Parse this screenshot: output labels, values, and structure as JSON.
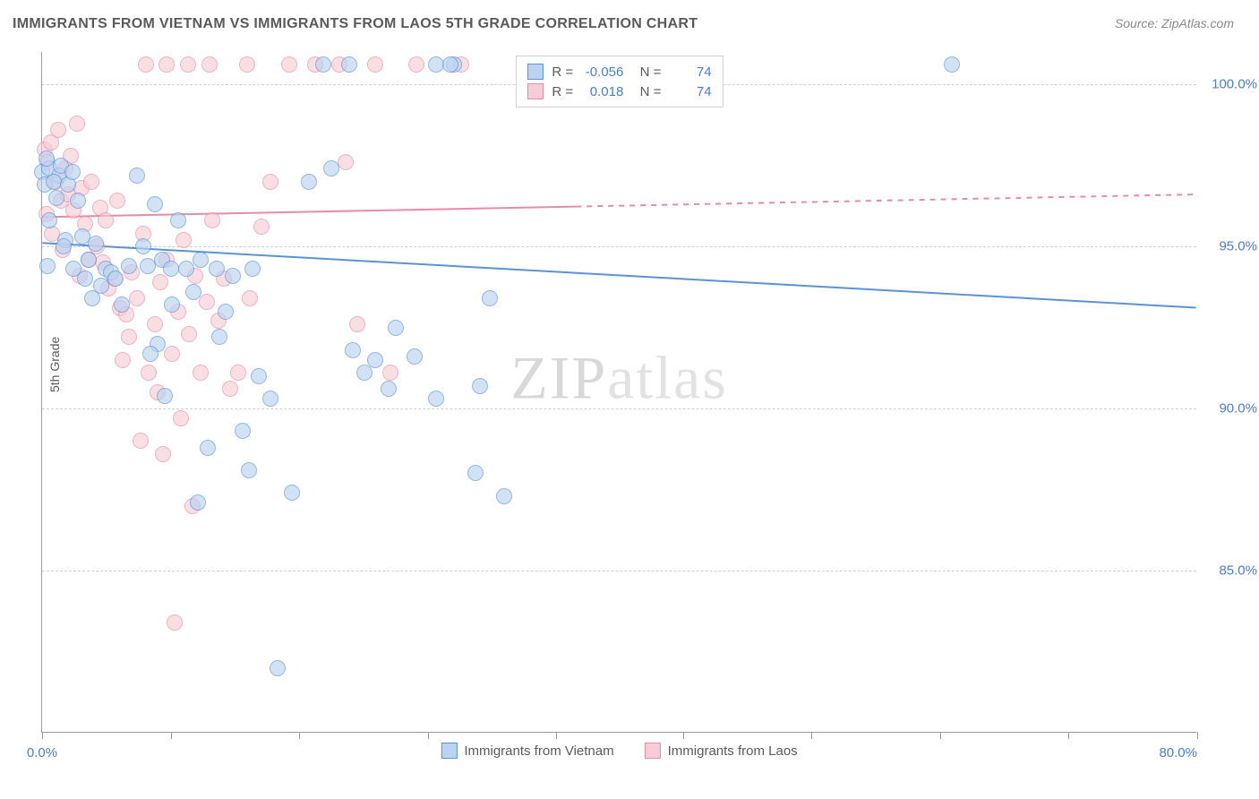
{
  "title": "IMMIGRANTS FROM VIETNAM VS IMMIGRANTS FROM LAOS 5TH GRADE CORRELATION CHART",
  "source_label": "Source: ZipAtlas.com",
  "watermark": {
    "part1": "ZIP",
    "part2": "atlas"
  },
  "y_axis_label": "5th Grade",
  "chart": {
    "background_color": "#ffffff",
    "grid_color": "#d0d0d0",
    "axis_color": "#9a9a9a",
    "tick_label_color": "#4a7ec9",
    "xlim": [
      0,
      80
    ],
    "ylim": [
      80,
      101
    ],
    "x_ticks_major": [
      0,
      80
    ],
    "x_ticks_minor": [
      0,
      8.9,
      17.8,
      26.7,
      35.6,
      44.4,
      53.3,
      62.2,
      71.1,
      80
    ],
    "x_tick_labels": {
      "0": "0.0%",
      "80": "80.0%"
    },
    "y_ticks": [
      85,
      90,
      95,
      100
    ],
    "y_tick_labels": {
      "85": "85.0%",
      "90": "90.0%",
      "95": "95.0%",
      "100": "100.0%"
    },
    "marker_radius": 9,
    "marker_stroke_width": 1.2,
    "trend_line_width": 2
  },
  "series": {
    "vietnam": {
      "label": "Immigrants from Vietnam",
      "fill": "#b9d3f0",
      "stroke": "#5a93d6",
      "fill_opacity": 0.65,
      "R": "-0.056",
      "N": "74",
      "trend": {
        "y_at_x0": 95.1,
        "y_at_x80": 93.1,
        "solid_until_x": 80
      },
      "points": [
        [
          0,
          97.3
        ],
        [
          0.5,
          97.4
        ],
        [
          0.3,
          97.7
        ],
        [
          1.2,
          97.2
        ],
        [
          0.2,
          96.9
        ],
        [
          0.8,
          97.0
        ],
        [
          1.3,
          97.5
        ],
        [
          1.0,
          96.5
        ],
        [
          1.8,
          96.9
        ],
        [
          0.5,
          95.8
        ],
        [
          2.1,
          97.3
        ],
        [
          1.6,
          95.2
        ],
        [
          2.5,
          96.4
        ],
        [
          1.5,
          95.0
        ],
        [
          2.8,
          95.3
        ],
        [
          0.4,
          94.4
        ],
        [
          3.2,
          94.6
        ],
        [
          2.2,
          94.3
        ],
        [
          3.7,
          95.1
        ],
        [
          3.0,
          94.0
        ],
        [
          4.4,
          94.3
        ],
        [
          4.1,
          93.8
        ],
        [
          4.8,
          94.2
        ],
        [
          3.5,
          93.4
        ],
        [
          5.1,
          94.0
        ],
        [
          5.5,
          93.2
        ],
        [
          6.0,
          94.4
        ],
        [
          6.6,
          97.2
        ],
        [
          7.0,
          95.0
        ],
        [
          7.3,
          94.4
        ],
        [
          7.8,
          96.3
        ],
        [
          8.3,
          94.6
        ],
        [
          8.9,
          94.3
        ],
        [
          9.4,
          95.8
        ],
        [
          10.0,
          94.3
        ],
        [
          10.5,
          93.6
        ],
        [
          12.1,
          94.3
        ],
        [
          12.7,
          93.0
        ],
        [
          13.2,
          94.1
        ],
        [
          14.6,
          94.3
        ],
        [
          15.0,
          91.0
        ],
        [
          15.8,
          90.3
        ],
        [
          13.9,
          89.3
        ],
        [
          14.3,
          88.1
        ],
        [
          17.3,
          87.4
        ],
        [
          16.3,
          82.0
        ],
        [
          10.8,
          87.1
        ],
        [
          12.3,
          92.2
        ],
        [
          11.0,
          94.6
        ],
        [
          8.0,
          92.0
        ],
        [
          9.0,
          93.2
        ],
        [
          7.5,
          91.7
        ],
        [
          8.5,
          90.4
        ],
        [
          11.5,
          88.8
        ],
        [
          18.5,
          97.0
        ],
        [
          20.0,
          97.4
        ],
        [
          19.5,
          100.6
        ],
        [
          21.3,
          100.6
        ],
        [
          21.5,
          91.8
        ],
        [
          22.3,
          91.1
        ],
        [
          23.1,
          91.5
        ],
        [
          24.0,
          90.6
        ],
        [
          24.5,
          92.5
        ],
        [
          25.8,
          91.6
        ],
        [
          27.3,
          90.3
        ],
        [
          28.5,
          100.6
        ],
        [
          30.0,
          88.0
        ],
        [
          30.3,
          90.7
        ],
        [
          31.0,
          93.4
        ],
        [
          32.0,
          87.3
        ],
        [
          27.3,
          100.6
        ],
        [
          28.3,
          100.6
        ],
        [
          35.5,
          100.6
        ],
        [
          63.0,
          100.6
        ]
      ]
    },
    "laos": {
      "label": "Immigrants from Laos",
      "fill": "#f6cdd7",
      "stroke": "#e98ba4",
      "fill_opacity": 0.65,
      "R": "0.018",
      "N": "74",
      "trend": {
        "y_at_x0": 95.9,
        "y_at_x80": 96.6,
        "solid_until_x": 37
      },
      "points": [
        [
          0.2,
          98.0
        ],
        [
          0.4,
          97.6
        ],
        [
          0.6,
          98.2
        ],
        [
          0.9,
          97.0
        ],
        [
          1.1,
          98.6
        ],
        [
          1.3,
          96.4
        ],
        [
          1.6,
          97.4
        ],
        [
          0.3,
          96.0
        ],
        [
          1.8,
          96.6
        ],
        [
          2.0,
          97.8
        ],
        [
          2.2,
          96.1
        ],
        [
          2.4,
          98.8
        ],
        [
          0.7,
          95.4
        ],
        [
          2.7,
          96.8
        ],
        [
          1.4,
          94.9
        ],
        [
          3.0,
          95.7
        ],
        [
          3.4,
          97.0
        ],
        [
          3.2,
          94.6
        ],
        [
          3.8,
          95.0
        ],
        [
          2.6,
          94.1
        ],
        [
          4.2,
          94.5
        ],
        [
          4.0,
          96.2
        ],
        [
          4.6,
          93.7
        ],
        [
          4.4,
          95.8
        ],
        [
          5.0,
          94.0
        ],
        [
          5.4,
          93.1
        ],
        [
          5.2,
          96.4
        ],
        [
          5.8,
          92.9
        ],
        [
          6.2,
          94.2
        ],
        [
          5.6,
          91.5
        ],
        [
          6.6,
          93.4
        ],
        [
          6.0,
          92.2
        ],
        [
          7.0,
          95.4
        ],
        [
          7.4,
          91.1
        ],
        [
          6.8,
          89.0
        ],
        [
          7.8,
          92.6
        ],
        [
          8.2,
          93.9
        ],
        [
          8.0,
          90.5
        ],
        [
          8.6,
          94.6
        ],
        [
          9.0,
          91.7
        ],
        [
          8.4,
          88.6
        ],
        [
          9.4,
          93.0
        ],
        [
          9.8,
          95.2
        ],
        [
          10.2,
          92.3
        ],
        [
          9.6,
          89.7
        ],
        [
          10.6,
          94.1
        ],
        [
          11.0,
          91.1
        ],
        [
          10.4,
          87.0
        ],
        [
          11.4,
          93.3
        ],
        [
          11.8,
          95.8
        ],
        [
          12.2,
          92.7
        ],
        [
          9.2,
          83.4
        ],
        [
          12.6,
          94.0
        ],
        [
          13.6,
          91.1
        ],
        [
          13.0,
          90.6
        ],
        [
          14.4,
          93.4
        ],
        [
          7.2,
          100.6
        ],
        [
          8.6,
          100.6
        ],
        [
          10.1,
          100.6
        ],
        [
          11.6,
          100.6
        ],
        [
          14.2,
          100.6
        ],
        [
          15.2,
          95.6
        ],
        [
          15.8,
          97.0
        ],
        [
          21.0,
          97.6
        ],
        [
          21.8,
          92.6
        ],
        [
          17.1,
          100.6
        ],
        [
          18.9,
          100.6
        ],
        [
          20.6,
          100.6
        ],
        [
          23.1,
          100.6
        ],
        [
          24.1,
          91.1
        ],
        [
          25.9,
          100.6
        ],
        [
          29.0,
          100.6
        ],
        [
          35.3,
          100.6
        ],
        [
          36.6,
          100.6
        ]
      ]
    }
  },
  "stat_legend": {
    "R_label": "R =",
    "N_label": "N ="
  }
}
